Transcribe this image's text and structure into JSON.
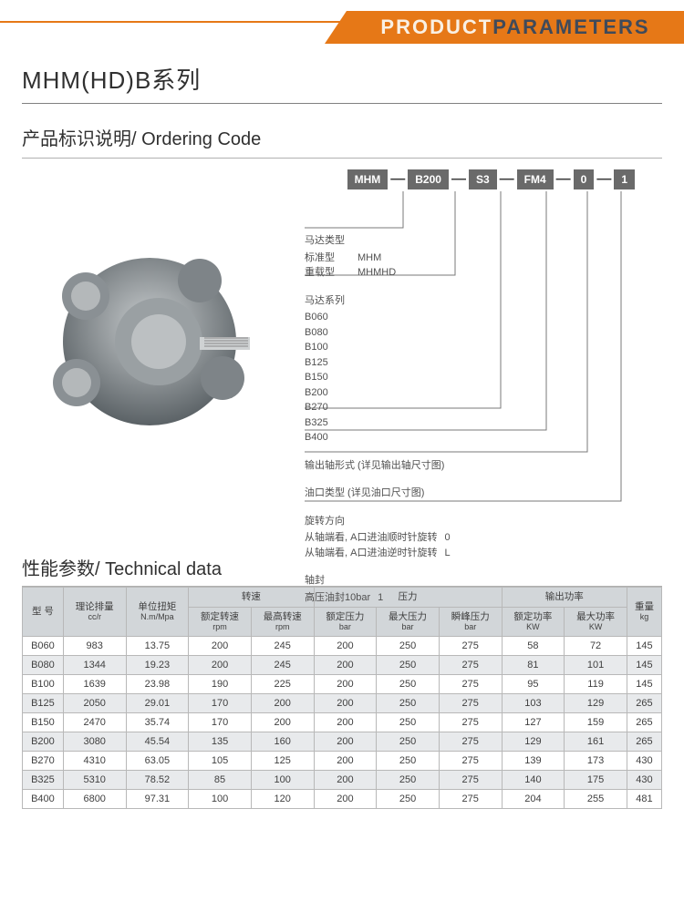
{
  "banner": {
    "t1": "PRODUCT",
    "t2": " PARAMETERS"
  },
  "series_title": "MHM(HD)B系列",
  "ordering_title": "产品标识说明/ Ordering Code",
  "code_boxes": [
    "MHM",
    "B200",
    "S3",
    "FM4",
    "0",
    "1"
  ],
  "groups": [
    {
      "label": "马达类型",
      "rows": [
        [
          "标准型",
          "MHM"
        ],
        [
          "重载型",
          "MHMHD"
        ]
      ]
    },
    {
      "label": "马达系列",
      "rows": [
        [
          "B060",
          ""
        ],
        [
          "B080",
          ""
        ],
        [
          "B100",
          ""
        ],
        [
          "B125",
          ""
        ],
        [
          "B150",
          ""
        ],
        [
          "B200",
          ""
        ],
        [
          "B270",
          ""
        ],
        [
          "B325",
          ""
        ],
        [
          "B400",
          ""
        ]
      ]
    },
    {
      "label": "",
      "rows": [
        [
          "输出轴形式 (详见输出轴尺寸图)",
          ""
        ]
      ]
    },
    {
      "label": "",
      "rows": [
        [
          "油口类型 (详见油口尺寸图)",
          ""
        ]
      ]
    },
    {
      "label": "旋转方向",
      "rows": [
        [
          "从轴端看, A口进油顺时针旋转",
          "0"
        ],
        [
          "从轴端看, A口进油逆时针旋转",
          "L"
        ]
      ]
    },
    {
      "label": "轴封",
      "rows": [
        [
          "高压油封10bar",
          "1"
        ]
      ]
    }
  ],
  "tech_title": "性能参数/ Technical data",
  "headers": {
    "model": "型 号",
    "disp": "理论排量",
    "disp_unit": "cc/r",
    "torque": "单位扭矩",
    "torque_unit": "N.m/Mpa",
    "speed_group": "转速",
    "speed_rated": "额定转速",
    "speed_max": "最高转速",
    "speed_unit": "rpm",
    "press_group": "压力",
    "p_rated": "额定压力",
    "p_max": "最大压力",
    "p_peak": "瞬峰压力",
    "p_unit": "bar",
    "power_group": "输出功率",
    "pw_rated": "额定功率",
    "pw_max": "最大功率",
    "pw_unit": "KW",
    "weight": "重量",
    "weight_unit": "kg"
  },
  "rows": [
    [
      "B060",
      "983",
      "13.75",
      "200",
      "245",
      "200",
      "250",
      "275",
      "58",
      "72",
      "145"
    ],
    [
      "B080",
      "1344",
      "19.23",
      "200",
      "245",
      "200",
      "250",
      "275",
      "81",
      "101",
      "145"
    ],
    [
      "B100",
      "1639",
      "23.98",
      "190",
      "225",
      "200",
      "250",
      "275",
      "95",
      "119",
      "145"
    ],
    [
      "B125",
      "2050",
      "29.01",
      "170",
      "200",
      "200",
      "250",
      "275",
      "103",
      "129",
      "265"
    ],
    [
      "B150",
      "2470",
      "35.74",
      "170",
      "200",
      "200",
      "250",
      "275",
      "127",
      "159",
      "265"
    ],
    [
      "B200",
      "3080",
      "45.54",
      "135",
      "160",
      "200",
      "250",
      "275",
      "129",
      "161",
      "265"
    ],
    [
      "B270",
      "4310",
      "63.05",
      "105",
      "125",
      "200",
      "250",
      "275",
      "139",
      "173",
      "430"
    ],
    [
      "B325",
      "5310",
      "78.52",
      "85",
      "100",
      "200",
      "250",
      "275",
      "140",
      "175",
      "430"
    ],
    [
      "B400",
      "6800",
      "97.31",
      "100",
      "120",
      "200",
      "250",
      "275",
      "204",
      "255",
      "481"
    ]
  ],
  "colors": {
    "accent": "#e67817",
    "band_dark": "#3f4a5a",
    "box_bg": "#6a6a6a",
    "head_bg": "#d2d6d9",
    "row_alt": "#e8eaec",
    "border": "#b8b8b8"
  }
}
